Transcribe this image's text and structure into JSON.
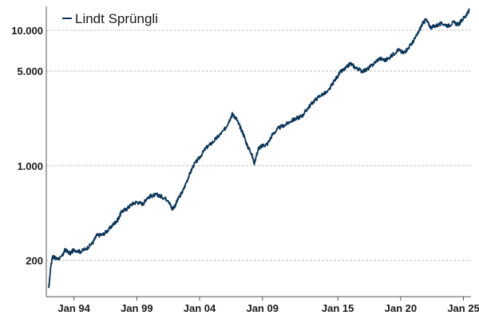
{
  "chart_data": {
    "type": "line",
    "title": "",
    "xlabel": "",
    "ylabel": "",
    "yscale": "log",
    "xlim": [
      1991.8,
      2025.6
    ],
    "ylim": [
      108,
      15000
    ],
    "grid": true,
    "legend_position": "top-left",
    "y_ticks": [
      {
        "value": 200,
        "label": "200"
      },
      {
        "value": 1000,
        "label": "1.000"
      },
      {
        "value": 5000,
        "label": "5.000"
      },
      {
        "value": 10000,
        "label": "10.000"
      }
    ],
    "x_ticks": [
      {
        "value": 1994.0,
        "label": "Jan 94"
      },
      {
        "value": 1999.0,
        "label": "Jan 99"
      },
      {
        "value": 2004.0,
        "label": "Jan 04"
      },
      {
        "value": 2009.0,
        "label": "Jan 09"
      },
      {
        "value": 2015.0,
        "label": "Jan 15"
      },
      {
        "value": 2020.0,
        "label": "Jan 20"
      },
      {
        "value": 2025.0,
        "label": "Jan 25"
      }
    ],
    "series": [
      {
        "name": "Lindt Sprüngli",
        "color": "#0b3558",
        "points": [
          [
            1992.0,
            125
          ],
          [
            1992.15,
            180
          ],
          [
            1992.3,
            215
          ],
          [
            1992.6,
            205
          ],
          [
            1993.0,
            210
          ],
          [
            1993.3,
            240
          ],
          [
            1993.7,
            225
          ],
          [
            1994.0,
            240
          ],
          [
            1994.5,
            232
          ],
          [
            1995.0,
            245
          ],
          [
            1995.5,
            270
          ],
          [
            1995.8,
            305
          ],
          [
            1996.3,
            310
          ],
          [
            1996.8,
            340
          ],
          [
            1997.2,
            375
          ],
          [
            1997.5,
            400
          ],
          [
            1997.8,
            460
          ],
          [
            1998.2,
            480
          ],
          [
            1998.6,
            520
          ],
          [
            1999.0,
            540
          ],
          [
            1999.5,
            520
          ],
          [
            1999.8,
            580
          ],
          [
            2000.2,
            600
          ],
          [
            2000.6,
            610
          ],
          [
            2001.0,
            590
          ],
          [
            2001.5,
            560
          ],
          [
            2001.8,
            480
          ],
          [
            2002.0,
            500
          ],
          [
            2002.3,
            570
          ],
          [
            2002.7,
            660
          ],
          [
            2003.1,
            820
          ],
          [
            2003.5,
            1000
          ],
          [
            2004.0,
            1150
          ],
          [
            2004.5,
            1350
          ],
          [
            2005.0,
            1480
          ],
          [
            2005.5,
            1650
          ],
          [
            2006.0,
            1850
          ],
          [
            2006.3,
            2100
          ],
          [
            2006.6,
            2400
          ],
          [
            2006.9,
            2250
          ],
          [
            2007.2,
            1950
          ],
          [
            2007.5,
            1700
          ],
          [
            2007.8,
            1400
          ],
          [
            2008.1,
            1250
          ],
          [
            2008.35,
            1050
          ],
          [
            2008.7,
            1350
          ],
          [
            2009.0,
            1400
          ],
          [
            2009.4,
            1450
          ],
          [
            2009.8,
            1700
          ],
          [
            2010.3,
            1900
          ],
          [
            2010.8,
            2000
          ],
          [
            2011.3,
            2150
          ],
          [
            2011.8,
            2250
          ],
          [
            2012.2,
            2350
          ],
          [
            2012.6,
            2650
          ],
          [
            2013.1,
            3000
          ],
          [
            2013.6,
            3300
          ],
          [
            2014.2,
            3500
          ],
          [
            2014.7,
            4200
          ],
          [
            2015.2,
            4900
          ],
          [
            2015.6,
            5200
          ],
          [
            2016.0,
            5700
          ],
          [
            2016.4,
            5300
          ],
          [
            2016.9,
            5000
          ],
          [
            2017.3,
            5100
          ],
          [
            2017.8,
            5600
          ],
          [
            2018.3,
            6200
          ],
          [
            2018.8,
            6000
          ],
          [
            2019.3,
            6500
          ],
          [
            2019.8,
            7200
          ],
          [
            2020.2,
            6800
          ],
          [
            2020.5,
            7200
          ],
          [
            2020.9,
            8000
          ],
          [
            2021.3,
            9200
          ],
          [
            2021.7,
            11000
          ],
          [
            2022.0,
            12000
          ],
          [
            2022.4,
            10500
          ],
          [
            2022.8,
            10800
          ],
          [
            2023.3,
            11200
          ],
          [
            2023.8,
            10800
          ],
          [
            2024.2,
            11400
          ],
          [
            2024.6,
            11000
          ],
          [
            2025.0,
            12300
          ],
          [
            2025.3,
            13200
          ],
          [
            2025.45,
            14000
          ]
        ]
      }
    ]
  }
}
